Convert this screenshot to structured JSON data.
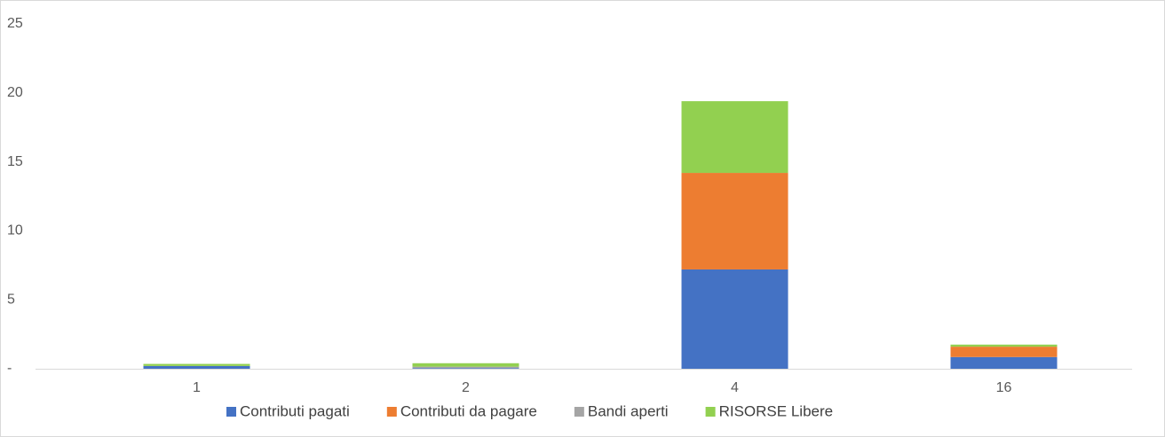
{
  "chart_data": {
    "type": "stacked_bar",
    "categories": [
      "1",
      "2",
      "4",
      "16"
    ],
    "series": [
      {
        "name": "Contributi pagati",
        "color": "#4472c4",
        "values": [
          0.2,
          0.05,
          7.2,
          0.85
        ]
      },
      {
        "name": "Contributi da pagare",
        "color": "#ed7d31",
        "values": [
          0,
          0,
          7.0,
          0.75
        ]
      },
      {
        "name": "Bandi aperti",
        "color": "#a5a5a5",
        "values": [
          0,
          0.1,
          0,
          0
        ]
      },
      {
        "name": "RISORSE Libere",
        "color": "#92d050",
        "values": [
          0.15,
          0.25,
          5.2,
          0.15
        ]
      }
    ],
    "ylim": [
      0,
      25
    ],
    "yticks": [
      {
        "value": 0,
        "label": "-"
      },
      5,
      10,
      15,
      20,
      25
    ],
    "grid": false,
    "legend": "bottom"
  }
}
